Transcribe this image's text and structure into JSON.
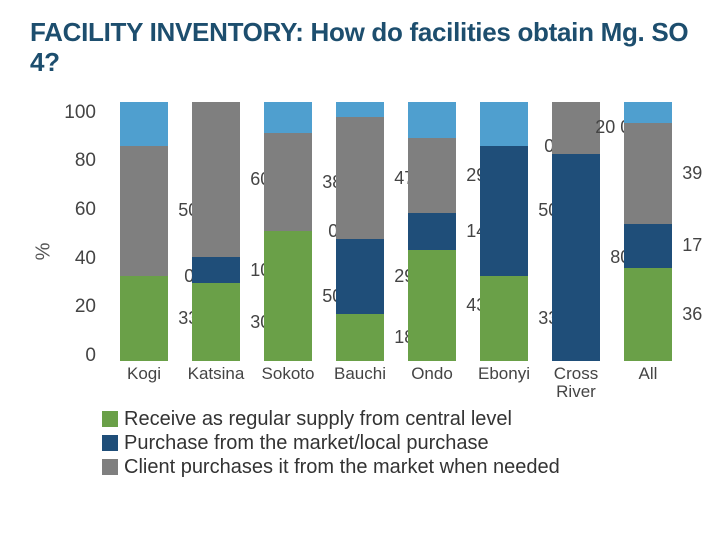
{
  "title": "FACILITY INVENTORY: How do facilities obtain Mg. SO 4?",
  "chart": {
    "type": "stacked-bar",
    "ylabel": "%",
    "ylim": [
      0,
      100
    ],
    "ytick_step": 20,
    "yticks": [
      "100",
      "80",
      "60",
      "40",
      "20",
      "0"
    ],
    "categories": [
      "Kogi",
      "Katsina",
      "Sokoto",
      "Bauchi",
      "Ondo",
      "Ebonyi",
      "Cross River",
      "All"
    ],
    "series": [
      {
        "key": "receive",
        "label": "Receive as regular supply from  central level",
        "color": "#6aa048"
      },
      {
        "key": "purchase",
        "label": "Purchase from the market/local purchase",
        "color": "#1f4e79"
      },
      {
        "key": "client",
        "label": "Client purchases it from the market when needed",
        "color": "#7f7f7f"
      },
      {
        "key": "gap",
        "label": "",
        "color": "#4f9fcf"
      }
    ],
    "data": [
      {
        "receive": 33,
        "purchase": 0,
        "client": 50,
        "gap": 17,
        "labels": {
          "receive": "33",
          "purchase": "0",
          "client": "50"
        }
      },
      {
        "receive": 30,
        "purchase": 10,
        "client": 60,
        "gap": 0,
        "labels": {
          "receive": "30",
          "purchase": "10",
          "client": "60"
        }
      },
      {
        "receive": 50,
        "purchase": 0,
        "client": 38,
        "gap": 12,
        "labels": {
          "receive": "50",
          "purchase": "0",
          "client": "38"
        }
      },
      {
        "receive": 18,
        "purchase": 29,
        "client": 47,
        "gap": 6,
        "labels": {
          "receive": "18",
          "purchase": "29",
          "client": "47"
        }
      },
      {
        "receive": 43,
        "purchase": 14,
        "client": 29,
        "gap": 14,
        "labels": {
          "receive": "43",
          "purchase": "14",
          "client": "29"
        }
      },
      {
        "receive": 33,
        "purchase": 50,
        "client": 0,
        "gap": 17,
        "labels": {
          "receive": "33",
          "purchase": "50",
          "client": "0"
        }
      },
      {
        "receive": 0,
        "purchase": 80,
        "client": 20,
        "gap": 0,
        "labels": {
          "receive": "",
          "purchase": "80",
          "client": "20 0",
          "receive_outside": "0"
        }
      },
      {
        "receive": 36,
        "purchase": 17,
        "client": 39,
        "gap": 8,
        "labels": {
          "receive": "36",
          "purchase": "17",
          "client": "39"
        }
      }
    ],
    "background_color": "#ffffff",
    "label_fontsize": 18,
    "tick_fontsize": 19,
    "bar_width_pct": 76
  },
  "legend": {
    "items": [
      {
        "color": "#6aa048",
        "text": "Receive as regular supply from  central level"
      },
      {
        "color": "#1f4e79",
        "text": "Purchase from the market/local purchase"
      },
      {
        "color": "#7f7f7f",
        "text": "Client purchases it from the market when needed"
      }
    ]
  }
}
